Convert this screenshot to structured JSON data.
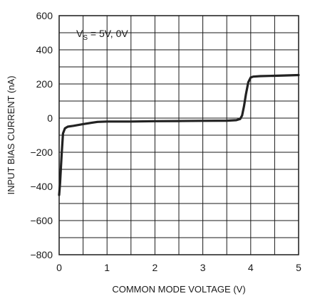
{
  "chart_data": {
    "type": "line",
    "title": "",
    "xlabel": "COMMON MODE VOLTAGE (V)",
    "ylabel": "INPUT BIAS CURRENT (nA)",
    "xlim": [
      0,
      5
    ],
    "ylim": [
      -800,
      600
    ],
    "xticks": [
      "0",
      "1",
      "2",
      "3",
      "4",
      "5"
    ],
    "yticks": [
      "600",
      "400",
      "200",
      "0",
      "−200",
      "−400",
      "−600",
      "−800"
    ],
    "grid": true,
    "annotation": {
      "main": "V",
      "subscript": "S",
      "rest": " = 5V, 0V"
    },
    "series": [
      {
        "color": "#222222",
        "x": [
          0,
          0.02,
          0.05,
          0.08,
          0.12,
          0.18,
          0.3,
          0.5,
          0.8,
          1.0,
          1.5,
          2.0,
          2.5,
          3.0,
          3.5,
          3.7,
          3.78,
          3.82,
          3.86,
          3.9,
          3.95,
          4.0,
          4.05,
          4.2,
          4.5,
          5.0
        ],
        "y": [
          -450,
          -380,
          -220,
          -90,
          -60,
          -50,
          -45,
          -35,
          -22,
          -20,
          -20,
          -18,
          -17,
          -16,
          -15,
          -12,
          -5,
          15,
          70,
          140,
          210,
          238,
          243,
          246,
          248,
          252
        ]
      }
    ]
  }
}
